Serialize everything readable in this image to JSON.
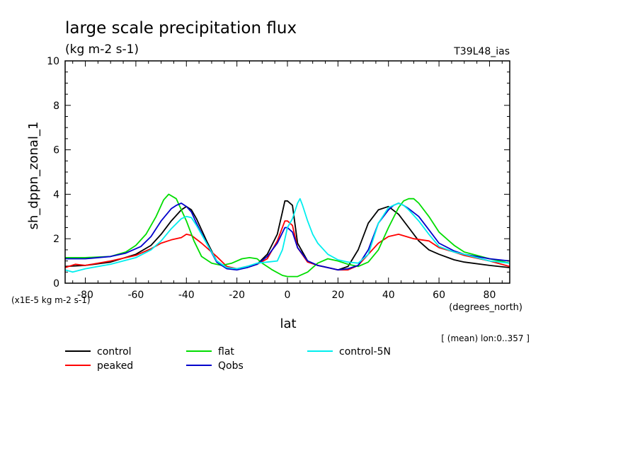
{
  "chart_data": {
    "type": "line",
    "title": "large scale precipitation flux",
    "subtitle": "(kg m-2 s-1)",
    "experiment": "T39L48_ias",
    "ylabel": "sh_dppn_zonal_1",
    "xlabel": "lat",
    "xunits": "(degrees_north)",
    "yscale_note": "(x1E-5 kg m-2 s-1)",
    "footnote": "[ (mean) lon:0..357 ]",
    "xlim": [
      -88,
      88
    ],
    "ylim": [
      0,
      10
    ],
    "xticks": [
      -80,
      -60,
      -40,
      -20,
      0,
      20,
      40,
      60,
      80
    ],
    "xtick_labels": [
      "-80",
      "-60",
      "-40",
      "-20",
      "0",
      "20",
      "40",
      "60",
      "80"
    ],
    "yticks": [
      0,
      2,
      4,
      6,
      8,
      10
    ],
    "ytick_labels": [
      "0",
      "2",
      "4",
      "6",
      "8",
      "10"
    ],
    "grid": false,
    "legend_position": "bottom",
    "series": [
      {
        "name": "control",
        "color": "#000000",
        "x": [
          -88,
          -80,
          -70,
          -60,
          -54,
          -50,
          -46,
          -42,
          -40,
          -38,
          -36,
          -32,
          -28,
          -24,
          -20,
          -16,
          -12,
          -8,
          -4,
          -2,
          -1,
          0,
          2,
          4,
          8,
          12,
          16,
          20,
          24,
          28,
          32,
          36,
          40,
          44,
          48,
          52,
          56,
          60,
          66,
          70,
          80,
          88
        ],
        "y": [
          0.75,
          0.8,
          0.95,
          1.3,
          1.7,
          2.2,
          2.8,
          3.3,
          3.45,
          3.3,
          2.9,
          1.9,
          1.0,
          0.7,
          0.65,
          0.75,
          0.85,
          1.3,
          2.2,
          3.2,
          3.7,
          3.7,
          3.5,
          1.8,
          1.0,
          0.8,
          0.7,
          0.6,
          0.75,
          1.5,
          2.7,
          3.3,
          3.45,
          3.1,
          2.5,
          1.9,
          1.5,
          1.3,
          1.05,
          0.95,
          0.8,
          0.7
        ]
      },
      {
        "name": "peaked",
        "color": "#ff0000",
        "x": [
          -88,
          -84,
          -80,
          -70,
          -60,
          -54,
          -50,
          -46,
          -42,
          -40,
          -38,
          -34,
          -28,
          -24,
          -20,
          -16,
          -12,
          -8,
          -4,
          -1,
          0,
          2,
          4,
          8,
          12,
          16,
          20,
          24,
          28,
          32,
          36,
          40,
          44,
          50,
          56,
          60,
          66,
          70,
          80,
          88
        ],
        "y": [
          0.7,
          0.85,
          0.8,
          1.0,
          1.25,
          1.55,
          1.8,
          1.95,
          2.05,
          2.2,
          2.15,
          1.8,
          1.2,
          0.75,
          0.65,
          0.7,
          0.85,
          1.1,
          1.9,
          2.8,
          2.8,
          2.6,
          1.6,
          0.95,
          0.8,
          0.7,
          0.6,
          0.6,
          0.8,
          1.3,
          1.8,
          2.1,
          2.2,
          2.0,
          1.9,
          1.6,
          1.4,
          1.25,
          1.0,
          0.75
        ]
      },
      {
        "name": "flat",
        "color": "#00dd00",
        "x": [
          -88,
          -80,
          -70,
          -64,
          -60,
          -56,
          -52,
          -49,
          -47,
          -44,
          -40,
          -37,
          -34,
          -30,
          -26,
          -22,
          -18,
          -15,
          -12,
          -10,
          -6,
          -2,
          0,
          2,
          4,
          8,
          12,
          16,
          20,
          24,
          28,
          32,
          36,
          40,
          44,
          46,
          48,
          50,
          52,
          56,
          60,
          66,
          70,
          80,
          88
        ],
        "y": [
          1.15,
          1.15,
          1.2,
          1.4,
          1.7,
          2.2,
          3.0,
          3.75,
          4.0,
          3.8,
          2.8,
          1.9,
          1.2,
          0.9,
          0.8,
          0.9,
          1.1,
          1.15,
          1.1,
          0.9,
          0.6,
          0.35,
          0.3,
          0.3,
          0.3,
          0.5,
          0.9,
          1.1,
          1.0,
          0.85,
          0.75,
          0.95,
          1.5,
          2.5,
          3.4,
          3.7,
          3.8,
          3.8,
          3.6,
          3.0,
          2.3,
          1.7,
          1.4,
          1.1,
          0.9
        ]
      },
      {
        "name": "Qobs",
        "color": "#0000cc",
        "x": [
          -88,
          -80,
          -70,
          -64,
          -58,
          -54,
          -50,
          -46,
          -44,
          -42,
          -40,
          -38,
          -36,
          -32,
          -28,
          -24,
          -20,
          -16,
          -12,
          -8,
          -4,
          -1,
          0,
          2,
          4,
          8,
          12,
          16,
          20,
          24,
          28,
          32,
          36,
          40,
          42,
          44,
          46,
          48,
          52,
          56,
          60,
          66,
          70,
          80,
          88
        ],
        "y": [
          1.1,
          1.1,
          1.2,
          1.35,
          1.65,
          2.1,
          2.8,
          3.35,
          3.5,
          3.6,
          3.45,
          3.2,
          2.7,
          1.8,
          0.95,
          0.65,
          0.6,
          0.7,
          0.85,
          1.2,
          1.8,
          2.5,
          2.5,
          2.3,
          1.6,
          1.0,
          0.8,
          0.7,
          0.6,
          0.65,
          0.8,
          1.5,
          2.7,
          3.3,
          3.5,
          3.6,
          3.5,
          3.35,
          3.0,
          2.4,
          1.8,
          1.45,
          1.3,
          1.1,
          1.0
        ]
      },
      {
        "name": "control-5N",
        "color": "#00eeee",
        "x": [
          -88,
          -85,
          -80,
          -70,
          -60,
          -54,
          -50,
          -46,
          -42,
          -40,
          -38,
          -36,
          -32,
          -28,
          -24,
          -20,
          -16,
          -12,
          -8,
          -4,
          -2,
          0,
          2,
          4,
          5,
          6,
          8,
          10,
          12,
          16,
          20,
          24,
          28,
          32,
          36,
          40,
          42,
          44,
          46,
          48,
          52,
          56,
          60,
          66,
          70,
          80,
          88
        ],
        "y": [
          0.6,
          0.5,
          0.65,
          0.85,
          1.15,
          1.5,
          1.9,
          2.45,
          2.9,
          3.0,
          2.95,
          2.6,
          1.8,
          1.0,
          0.7,
          0.65,
          0.75,
          0.9,
          0.95,
          1.0,
          1.5,
          2.5,
          2.9,
          3.6,
          3.8,
          3.5,
          2.8,
          2.2,
          1.8,
          1.3,
          1.05,
          0.95,
          0.9,
          1.3,
          2.7,
          3.4,
          3.5,
          3.6,
          3.5,
          3.3,
          2.8,
          2.2,
          1.65,
          1.4,
          1.3,
          1.0,
          0.9
        ]
      }
    ]
  }
}
